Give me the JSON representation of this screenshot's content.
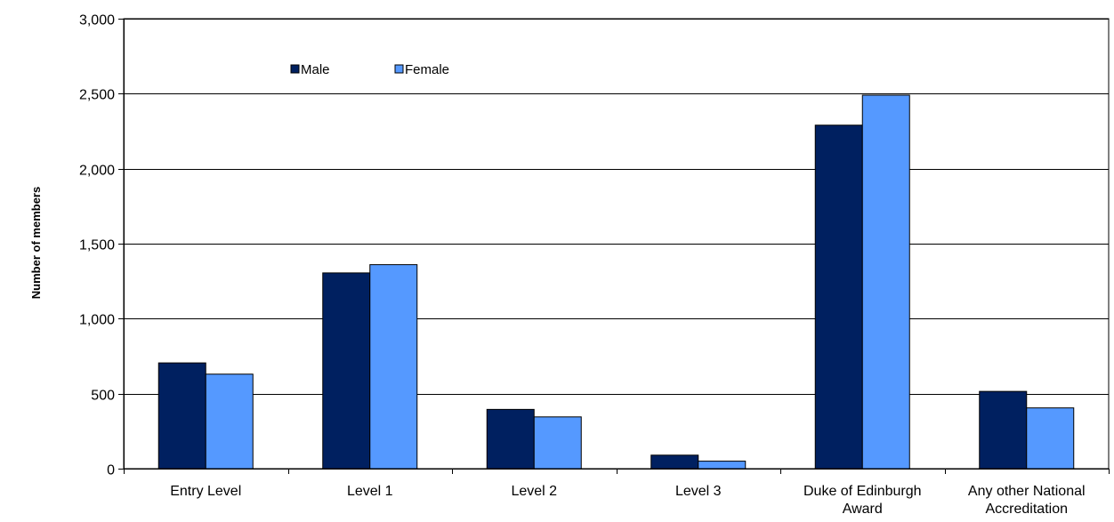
{
  "chart_data": {
    "type": "bar",
    "title": "",
    "xlabel": "",
    "ylabel": "Number of members",
    "ylim": [
      0,
      3000
    ],
    "yticks": [
      0,
      500,
      1000,
      1500,
      2000,
      2500,
      3000
    ],
    "ytick_labels": [
      "0",
      "500",
      "1,000",
      "1,500",
      "2,000",
      "2,500",
      "3,000"
    ],
    "grid": true,
    "legend_position": "top-left",
    "categories": [
      [
        "Entry Level"
      ],
      [
        "Level 1"
      ],
      [
        "Level 2"
      ],
      [
        "Level 3"
      ],
      [
        "Duke of Edinburgh",
        "Award"
      ],
      [
        "Any other National",
        "Accreditation"
      ]
    ],
    "series": [
      {
        "name": "Male",
        "color": "#002060",
        "values": [
          705,
          1305,
          395,
          90,
          2290,
          515
        ]
      },
      {
        "name": "Female",
        "color": "#5599ff",
        "values": [
          630,
          1360,
          345,
          50,
          2490,
          405
        ]
      }
    ]
  }
}
